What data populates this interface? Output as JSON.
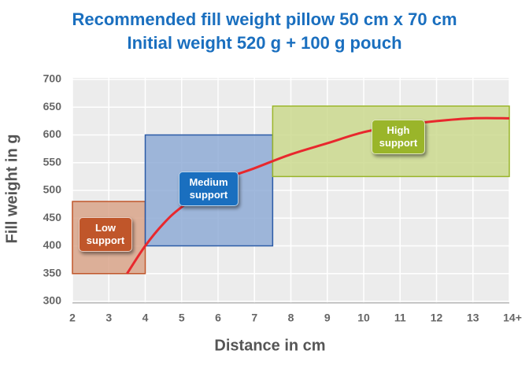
{
  "chart_data": {
    "type": "line",
    "title": "Recommended fill weight pillow 50 cm x 70 cm",
    "subtitle": "Initial weight 520 g + 100 g pouch",
    "x_label": "Distance in cm",
    "y_label": "Fill weight in g",
    "xlim": [
      2,
      14
    ],
    "ylim": [
      300,
      700
    ],
    "xticks": [
      2,
      3,
      4,
      5,
      6,
      7,
      8,
      9,
      10,
      11,
      12,
      13,
      {
        "value": 14,
        "label": "14+"
      }
    ],
    "yticks": [
      300,
      350,
      400,
      450,
      500,
      550,
      600,
      650,
      700
    ],
    "grid": true,
    "series": [
      {
        "color": "#e8282d",
        "x": [
          3.5,
          4,
          4.5,
          5,
          6,
          7,
          8,
          9,
          10,
          11,
          12,
          13,
          14
        ],
        "values": [
          350,
          400,
          440,
          470,
          515,
          540,
          565,
          585,
          605,
          617,
          625,
          630,
          630
        ]
      }
    ],
    "regions": [
      {
        "label": "Low support",
        "x": [
          2,
          4
        ],
        "y": [
          350,
          480
        ],
        "fill": "#d9a48a",
        "stroke": "#c0562a",
        "label_color": "#c0562a"
      },
      {
        "label": "Medium support",
        "x": [
          4,
          7.5
        ],
        "y": [
          400,
          600
        ],
        "fill": "#8fabd6",
        "stroke": "#2a5aa6",
        "label_color": "#1a6fbf"
      },
      {
        "label": "High support",
        "x": [
          7.5,
          14
        ],
        "y": [
          525,
          652
        ],
        "fill": "#cbd98e",
        "stroke": "#9ab52a",
        "label_color": "#9ab52a"
      }
    ]
  }
}
